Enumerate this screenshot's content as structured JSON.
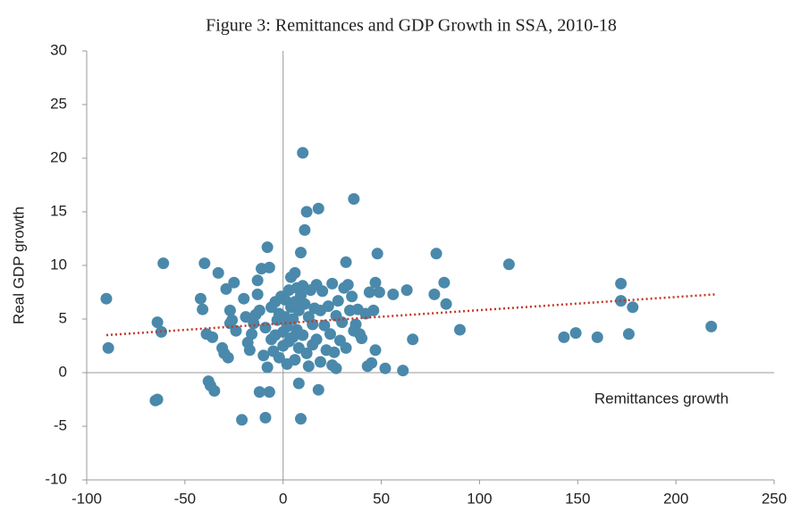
{
  "chart_data": {
    "type": "scatter",
    "title": "Figure 3: Remittances and GDP Growth in SSA, 2010-18",
    "x_label": "Remittances growth",
    "y_label": "Real GDP growth",
    "color": "#4a89ab",
    "x": [
      -90,
      -89,
      -65,
      -64,
      -64,
      -62,
      -61,
      -40,
      -42,
      -41,
      -39,
      -38,
      -37,
      -35,
      -36,
      -33,
      -31,
      -30,
      -28,
      -29,
      -27,
      -27,
      -26,
      -25,
      -24,
      -21,
      -20,
      -19,
      -18,
      -17,
      -16,
      -15,
      -14,
      -13,
      -13,
      -12,
      -12,
      -11,
      -10,
      -9,
      -9,
      -8,
      -8,
      -7,
      -7,
      -6,
      -6,
      -5,
      -4,
      -4,
      -3,
      -2,
      -2,
      -1,
      0,
      0,
      1,
      1,
      2,
      2,
      3,
      3,
      4,
      4,
      5,
      5,
      6,
      6,
      6,
      7,
      7,
      8,
      8,
      8,
      9,
      9,
      9,
      10,
      10,
      10,
      11,
      11,
      12,
      12,
      13,
      13,
      14,
      15,
      15,
      16,
      17,
      17,
      18,
      18,
      19,
      19,
      20,
      21,
      22,
      23,
      24,
      25,
      25,
      26,
      27,
      27,
      28,
      29,
      30,
      31,
      32,
      32,
      33,
      34,
      35,
      36,
      36,
      37,
      38,
      39,
      40,
      42,
      43,
      44,
      45,
      46,
      47,
      47,
      48,
      49,
      52,
      56,
      61,
      63,
      66,
      77,
      78,
      82,
      83,
      90,
      115,
      143,
      149,
      160,
      172,
      172,
      176,
      178,
      218
    ],
    "y": [
      6.9,
      2.3,
      -2.6,
      -2.5,
      4.7,
      3.8,
      10.2,
      10.2,
      6.9,
      5.9,
      3.6,
      -0.8,
      -1.2,
      -1.7,
      3.3,
      9.3,
      2.3,
      1.8,
      1.4,
      7.8,
      5.8,
      4.6,
      4.9,
      8.4,
      3.9,
      -4.4,
      6.9,
      5.2,
      2.8,
      2.1,
      3.6,
      4.6,
      5.4,
      8.6,
      7.3,
      -1.8,
      5.8,
      9.7,
      1.6,
      4.2,
      -4.2,
      11.7,
      0.5,
      9.8,
      -1.8,
      6.1,
      3.1,
      2.0,
      6.6,
      3.5,
      4.9,
      5.5,
      1.4,
      7.1,
      2.5,
      3.8,
      5.2,
      6.8,
      0.8,
      4.3,
      7.7,
      2.9,
      8.9,
      6.1,
      5.0,
      3.3,
      9.3,
      1.2,
      6.6,
      7.9,
      4.0,
      -1.0,
      2.3,
      5.8,
      -4.3,
      11.2,
      7.2,
      20.5,
      8.1,
      3.5,
      13.3,
      6.4,
      15.0,
      1.8,
      5.2,
      0.6,
      7.7,
      4.5,
      2.6,
      6.0,
      8.2,
      3.1,
      15.3,
      -1.6,
      5.8,
      1.0,
      7.6,
      4.4,
      2.1,
      6.2,
      3.6,
      8.3,
      0.7,
      1.9,
      0.4,
      5.3,
      6.7,
      3.0,
      4.7,
      7.9,
      10.3,
      2.3,
      8.2,
      5.8,
      7.1,
      16.2,
      3.9,
      4.5,
      5.9,
      3.6,
      3.2,
      5.5,
      0.6,
      7.5,
      0.9,
      5.8,
      8.4,
      2.1,
      11.1,
      7.5,
      0.4,
      7.3,
      0.2,
      7.7,
      3.1,
      7.3,
      11.1,
      8.4,
      6.4,
      4.0,
      10.1,
      3.3,
      3.7,
      3.3,
      8.3,
      6.7,
      3.6,
      6.1,
      4.3
    ],
    "trendline": {
      "x": [
        -90,
        220
      ],
      "y": [
        3.5,
        7.3
      ],
      "color": "#c0392b"
    },
    "xlim": [
      -100,
      250
    ],
    "xticks": [
      -100,
      -50,
      0,
      50,
      100,
      150,
      200,
      250
    ],
    "ylim": [
      -10,
      30
    ],
    "yticks": [
      -10,
      -5,
      0,
      5,
      10,
      15,
      20,
      25,
      30
    ]
  }
}
